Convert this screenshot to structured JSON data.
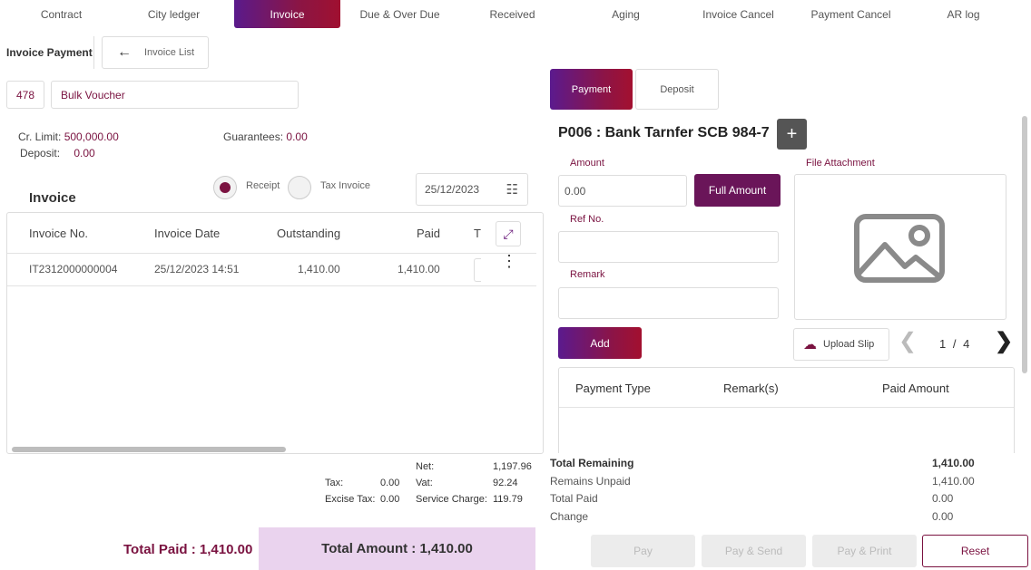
{
  "nav": {
    "tabs": [
      "Contract",
      "City ledger",
      "Invoice",
      "Due & Over Due",
      "Received",
      "Aging",
      "Invoice Cancel",
      "Payment Cancel",
      "AR log"
    ],
    "active_index": 2
  },
  "header": {
    "title": "Invoice Payment",
    "back_label": "Invoice List"
  },
  "customer": {
    "code": "478",
    "name": "Bulk Voucher"
  },
  "credit": {
    "limit_label": "Cr. Limit:",
    "limit_value": "500,000.00",
    "deposit_label": "Deposit:",
    "deposit_value": "0.00",
    "guarantees_label": "Guarantees:",
    "guarantees_value": "0.00"
  },
  "invoice_section": {
    "title": "Invoice",
    "radio_receipt": "Receipt",
    "radio_tax_invoice": "Tax Invoice",
    "date": "25/12/2023"
  },
  "invoice_table": {
    "headers": [
      "Invoice No.",
      "Invoice Date",
      "Outstanding",
      "Paid",
      "T"
    ],
    "rows": [
      {
        "invoice_no": "IT2312000000004",
        "invoice_date": "25/12/2023 14:51",
        "outstanding": "1,410.00",
        "paid": "1,410.00"
      }
    ]
  },
  "summary": {
    "tax_label": "Tax:",
    "tax_value": "0.00",
    "excise_label": "Excise Tax:",
    "excise_value": "0.00",
    "net_label": "Net:",
    "net_value": "1,197.96",
    "vat_label": "Vat:",
    "vat_value": "92.24",
    "service_label": "Service Charge:",
    "service_value": "119.79"
  },
  "totals": {
    "total_paid": "Total Paid : 1,410.00",
    "total_amount": "Total Amount : 1,410.00"
  },
  "payment_tabs": {
    "payment": "Payment",
    "deposit": "Deposit"
  },
  "payment": {
    "method_title": "P006 : Bank Tarnfer SCB 984-7",
    "add_symbol": "+",
    "amount_label": "Amount",
    "amount_value": "0.00",
    "full_amount_label": "Full Amount",
    "ref_label": "Ref No.",
    "remark_label": "Remark",
    "add_label": "Add",
    "file_attachment_label": "File Attachment",
    "upload_label": "Upload Slip",
    "page_current": "1",
    "page_sep": "/",
    "page_total": "4"
  },
  "payment_table": {
    "headers": [
      "Payment Type",
      "Remark(s)",
      "Paid Amount"
    ]
  },
  "remaining": {
    "total_remaining_label": "Total Remaining",
    "total_remaining_value": "1,410.00",
    "unpaid_label": "Remains Unpaid",
    "unpaid_value": "1,410.00",
    "total_paid_label": "Total Paid",
    "total_paid_value": "0.00",
    "change_label": "Change",
    "change_value": "0.00"
  },
  "actions": {
    "pay": "Pay",
    "pay_send": "Pay & Send",
    "pay_print": "Pay & Print",
    "reset": "Reset"
  },
  "colors": {
    "accent_maroon": "#7a1240",
    "accent_purple": "#5b1a8e",
    "total_amount_bg": "#ead3ee"
  }
}
